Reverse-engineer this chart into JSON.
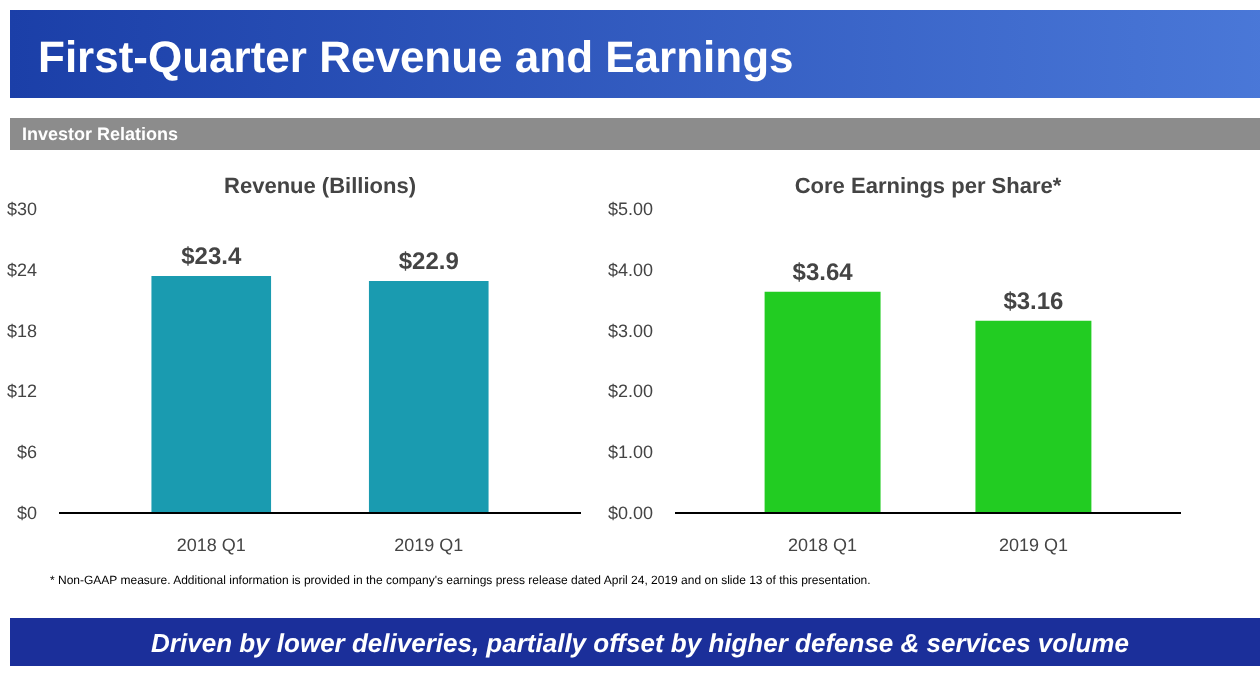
{
  "chart_data": [
    {
      "type": "bar",
      "title": "Revenue (Billions)",
      "categories": [
        "2018 Q1",
        "2019 Q1"
      ],
      "values": [
        23.4,
        22.9
      ],
      "color": "#1a9bb0",
      "value_labels": [
        "$23.4",
        "$22.9"
      ],
      "ylim": [
        0,
        30
      ],
      "yticks": [
        {
          "value": 0,
          "label": "$0"
        },
        {
          "value": 6,
          "label": "$6"
        },
        {
          "value": 12,
          "label": "$12"
        },
        {
          "value": 18,
          "label": "$18"
        },
        {
          "value": 24,
          "label": "$24"
        },
        {
          "value": 30,
          "label": "$30"
        }
      ],
      "annotations": [
        "First-Quarter Revenue and Earnings",
        "Investor Relations",
        "*  Non-GAAP measure. Additional information is provided in the company's earnings press release dated April 24, 2019 and on slide 13 of this presentation.",
        "Driven by lower deliveries, partially offset by higher defense & services volume"
      ]
    },
    {
      "type": "bar",
      "title": "Core Earnings per Share*",
      "categories": [
        "2018 Q1",
        "2019 Q1"
      ],
      "values": [
        3.64,
        3.16
      ],
      "color": "#22cc22",
      "value_labels": [
        "$3.64",
        "$3.16"
      ],
      "ylim": [
        0,
        5
      ],
      "yticks": [
        {
          "value": 0,
          "label": "$0.00"
        },
        {
          "value": 1,
          "label": "$1.00"
        },
        {
          "value": 2,
          "label": "$2.00"
        },
        {
          "value": 3,
          "label": "$3.00"
        },
        {
          "value": 4,
          "label": "$4.00"
        },
        {
          "value": 5,
          "label": "$5.00"
        }
      ]
    }
  ]
}
